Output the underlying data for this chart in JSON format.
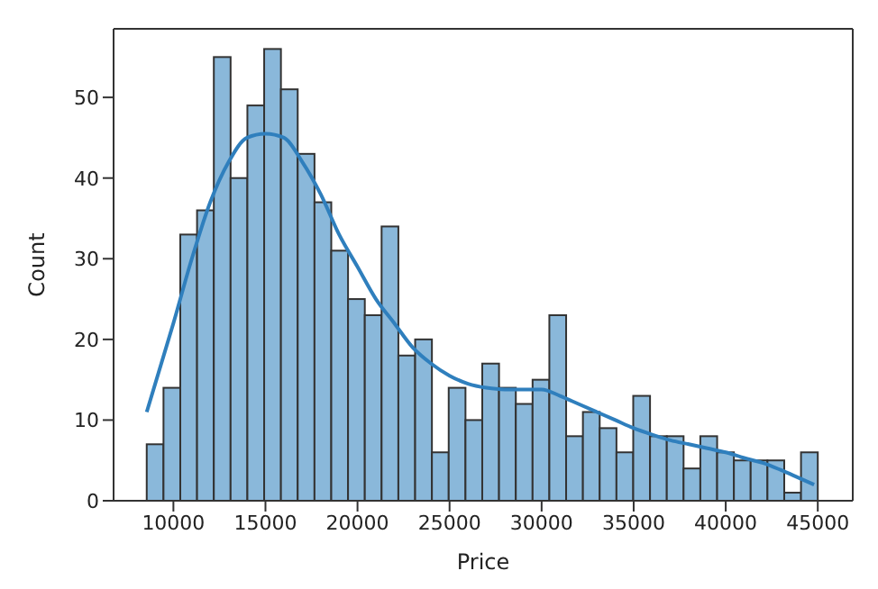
{
  "chart_data": {
    "type": "histogram",
    "xlabel": "Price",
    "ylabel": "Count",
    "bins": [
      8550,
      9461,
      10373,
      11284,
      12195,
      13106,
      14018,
      14929,
      15840,
      16751,
      17663,
      18574,
      19485,
      20396,
      21308,
      22219,
      23130,
      24041,
      24953,
      25864,
      26775,
      27686,
      28598,
      29509,
      30420,
      31331,
      32243,
      33154,
      34065,
      34976,
      35888,
      36799,
      37710,
      38621,
      39533,
      40444,
      41355,
      42266,
      43178,
      44089,
      45000
    ],
    "series": [
      {
        "color": "#8ab8da",
        "values": [
          7,
          14,
          33,
          36,
          55,
          40,
          49,
          56,
          51,
          43,
          37,
          31,
          25,
          23,
          34,
          18,
          20,
          6,
          14,
          10,
          17,
          14,
          12,
          15,
          23,
          8,
          11,
          9,
          6,
          13,
          8,
          8,
          4,
          8,
          6,
          5,
          5,
          5,
          1,
          6
        ]
      },
      {
        "type": "line",
        "color": "#2f7fbd",
        "x": [
          8550,
          10000,
          11000,
          12000,
          13000,
          14000,
          15000,
          16000,
          17000,
          18000,
          19000,
          20000,
          21000,
          22000,
          23000,
          24000,
          25000,
          26000,
          27000,
          28000,
          29000,
          30000,
          31000,
          32000,
          33000,
          34000,
          35000,
          36000,
          37000,
          38000,
          39000,
          40000,
          41000,
          42000,
          43000,
          44000,
          44800
        ],
        "values": [
          11,
          22,
          30,
          37,
          42,
          45,
          45.5,
          45,
          42,
          38,
          33,
          29,
          25,
          22,
          19,
          17,
          15.5,
          14.5,
          14,
          13.8,
          13.8,
          13.8,
          13,
          12,
          11,
          10,
          9,
          8.2,
          7.5,
          7,
          6.5,
          6,
          5.3,
          4.7,
          3.8,
          2.8,
          2
        ]
      }
    ],
    "xlim": [
      6750,
      46900
    ],
    "xticks": [
      10000,
      15000,
      20000,
      25000,
      30000,
      35000,
      40000,
      45000
    ],
    "ylim": [
      0,
      58.5
    ],
    "yticks": [
      0,
      10,
      20,
      30,
      40,
      50
    ]
  }
}
